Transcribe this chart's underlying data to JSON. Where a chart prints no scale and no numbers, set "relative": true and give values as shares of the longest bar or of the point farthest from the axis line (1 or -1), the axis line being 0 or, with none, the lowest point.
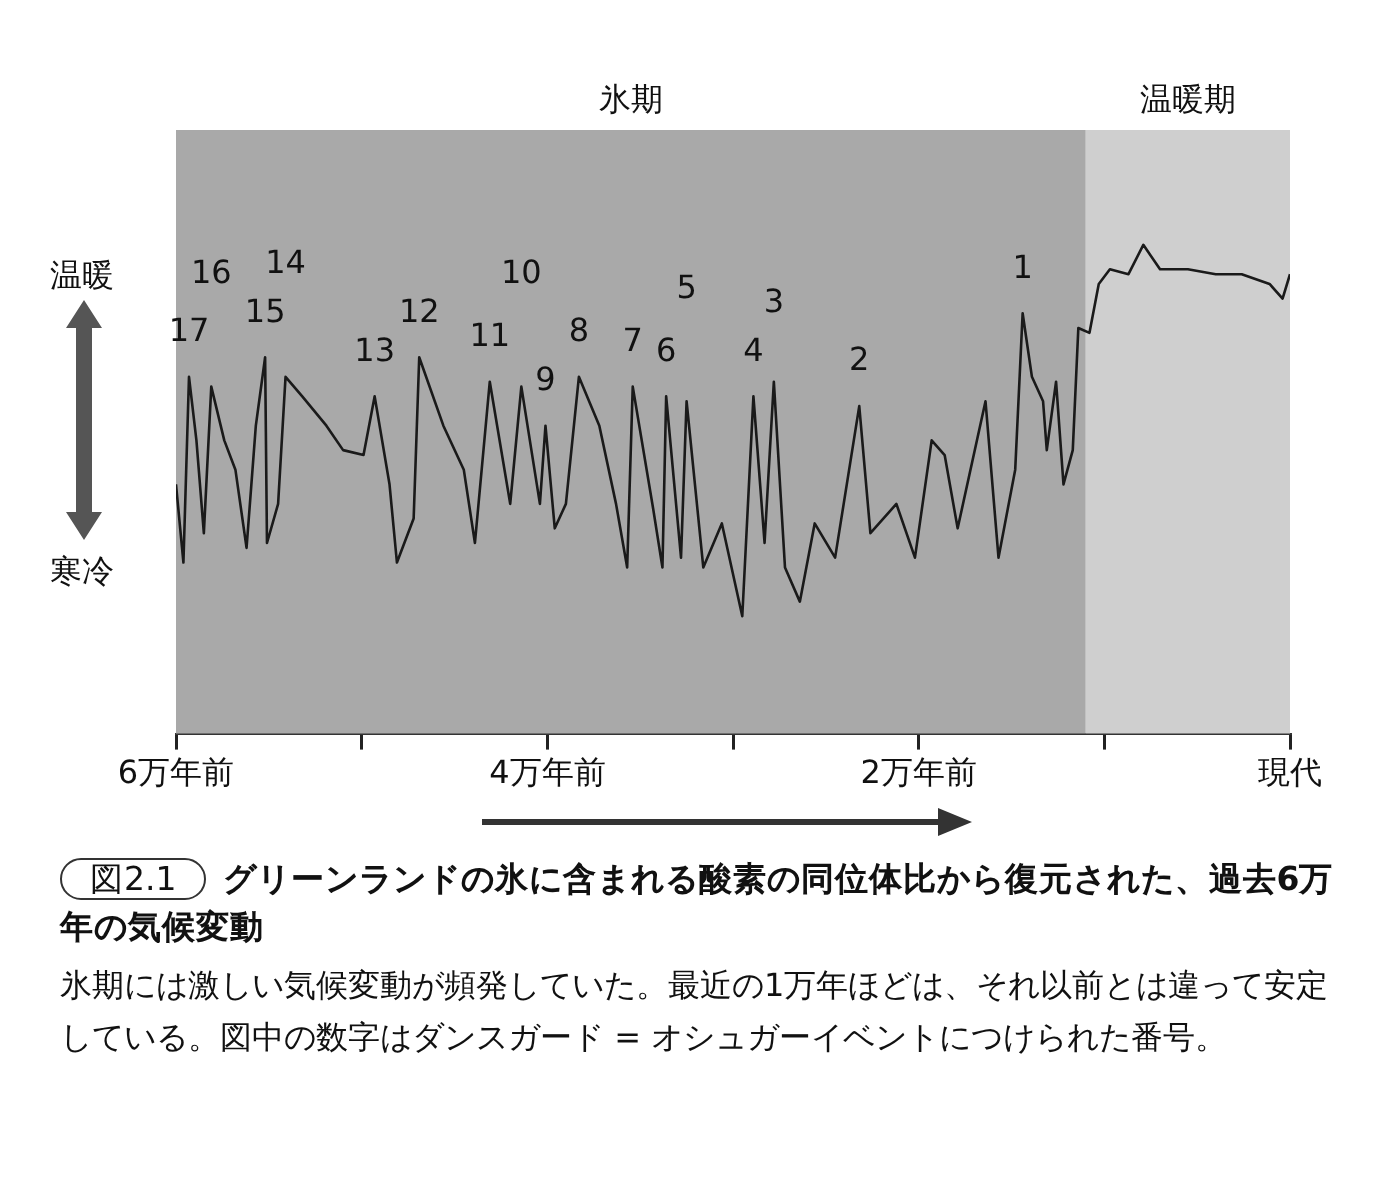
{
  "chart_data": {
    "type": "line",
    "relative": true,
    "title": "グリーンランドの氷に含まれる酸素の同位体比から復元された、過去6万年の気候変動",
    "subtitle": "氷期には激しい気候変動が頻発していた。最近の1万年ほどは、それ以前とは違って安定している。図中の数字はダンスガード = オシュガーイベントにつけられた番号。",
    "x": [
      6,
      5.96,
      5.93,
      5.89,
      5.85,
      5.81,
      5.74,
      5.68,
      5.62,
      5.57,
      5.52,
      5.51,
      5.45,
      5.41,
      5.32,
      5.19,
      5.1,
      4.99,
      4.93,
      4.85,
      4.81,
      4.72,
      4.69,
      4.56,
      4.45,
      4.39,
      4.31,
      4.2,
      4.14,
      4.04,
      4.01,
      3.96,
      3.9,
      3.83,
      3.72,
      3.63,
      3.57,
      3.54,
      3.43,
      3.38,
      3.36,
      3.28,
      3.25,
      3.16,
      3.06,
      2.95,
      2.89,
      2.83,
      2.78,
      2.72,
      2.64,
      2.56,
      2.45,
      2.32,
      2.26,
      2.12,
      2.02,
      1.93,
      1.86,
      1.79,
      1.64,
      1.57,
      1.48,
      1.44,
      1.39,
      1.33,
      1.31,
      1.26,
      1.22,
      1.17,
      1.14,
      1.08,
      1.03,
      0.97,
      0.87,
      0.79,
      0.7,
      0.55,
      0.4,
      0.26,
      0.11,
      0.04,
      0
    ],
    "series": [
      {
        "color": "#1a1a1a",
        "values": [
          0.51,
          0.35,
          0.73,
          0.6,
          0.41,
          0.71,
          0.6,
          0.54,
          0.38,
          0.63,
          0.77,
          0.39,
          0.47,
          0.73,
          0.69,
          0.63,
          0.58,
          0.57,
          0.69,
          0.51,
          0.35,
          0.44,
          0.77,
          0.63,
          0.54,
          0.39,
          0.72,
          0.47,
          0.71,
          0.47,
          0.63,
          0.42,
          0.47,
          0.73,
          0.63,
          0.47,
          0.34,
          0.71,
          0.46,
          0.34,
          0.69,
          0.36,
          0.68,
          0.34,
          0.43,
          0.24,
          0.69,
          0.39,
          0.72,
          0.34,
          0.27,
          0.43,
          0.36,
          0.67,
          0.41,
          0.47,
          0.36,
          0.6,
          0.57,
          0.42,
          0.68,
          0.36,
          0.54,
          0.86,
          0.73,
          0.68,
          0.58,
          0.72,
          0.51,
          0.58,
          0.83,
          0.82,
          0.92,
          0.95,
          0.94,
          1,
          0.95,
          0.95,
          0.94,
          0.94,
          0.92,
          0.89,
          0.94
        ]
      }
    ],
    "xlim": [
      6,
      0
    ],
    "xticks": [
      {
        "value": 6,
        "label": "6万年前"
      },
      {
        "value": 5,
        "label": null
      },
      {
        "value": 4,
        "label": "4万年前"
      },
      {
        "value": 3,
        "label": null
      },
      {
        "value": 2,
        "label": "2万年前"
      },
      {
        "value": 1,
        "label": null
      },
      {
        "value": 0,
        "label": "現代"
      }
    ],
    "tick_labels": "x",
    "bands": [
      {
        "axis": "x",
        "from": 6,
        "to": 1.1,
        "label": "氷期",
        "color": "#a9a9a9"
      },
      {
        "axis": "x",
        "from": 1.1,
        "to": 0,
        "label": "温暖期",
        "color": "#cfcfcf"
      }
    ],
    "annotations": [
      "温暖",
      "寒冷",
      "図2.1",
      {
        "text": "17",
        "x": 5.93,
        "y": 0.73
      },
      {
        "text": "16",
        "x": 5.81,
        "y": 0.71
      },
      {
        "text": "15",
        "x": 5.52,
        "y": 0.77
      },
      {
        "text": "14",
        "x": 5.41,
        "y": 0.73
      },
      {
        "text": "13",
        "x": 4.93,
        "y": 0.69
      },
      {
        "text": "12",
        "x": 4.69,
        "y": 0.77
      },
      {
        "text": "11",
        "x": 4.31,
        "y": 0.72
      },
      {
        "text": "10",
        "x": 4.14,
        "y": 0.71
      },
      {
        "text": "9",
        "x": 4.01,
        "y": 0.63
      },
      {
        "text": "8",
        "x": 3.83,
        "y": 0.73
      },
      {
        "text": "7",
        "x": 3.54,
        "y": 0.71
      },
      {
        "text": "6",
        "x": 3.36,
        "y": 0.69
      },
      {
        "text": "5",
        "x": 3.25,
        "y": 0.68
      },
      {
        "text": "4",
        "x": 2.89,
        "y": 0.69
      },
      {
        "text": "3",
        "x": 2.78,
        "y": 0.72
      },
      {
        "text": "2",
        "x": 2.32,
        "y": 0.67
      },
      {
        "text": "1",
        "x": 1.44,
        "y": 0.86
      }
    ],
    "grid": false,
    "legend": false,
    "marker": "none",
    "line_style": "solid"
  }
}
